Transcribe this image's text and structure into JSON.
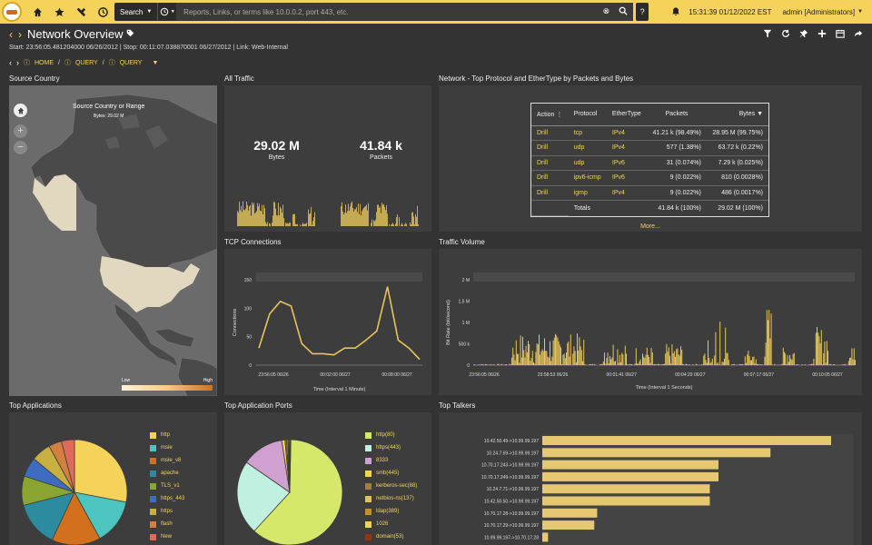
{
  "topbar": {
    "search_label": "Search",
    "search_placeholder": "Reports, Links, or terms like 10.0.0.2, port 443, etc.",
    "help": "?",
    "clock": "15:31:39 01/12/2022 EST",
    "user": "admin [Administrators]"
  },
  "page": {
    "title": "Network Overview",
    "subline": "Start: 23:56:05.481204000 06/26/2012 | Stop: 00:11:07.038870001 06/27/2012 | Link: Web-Internal",
    "crumbs": [
      "HOME",
      "QUERY",
      "QUERY"
    ]
  },
  "source_country": {
    "title": "Source Country",
    "tooltip_title": "Source Country or Range",
    "tooltip_value": "Bytes: 29.02 M",
    "legend_low": "Low",
    "legend_high": "High"
  },
  "all_traffic": {
    "title": "All Traffic",
    "bytes_value": "29.02 M",
    "bytes_label": "Bytes",
    "packets_value": "41.84 k",
    "packets_label": "Packets"
  },
  "protocol": {
    "title": "Network - Top Protocol and EtherType by Packets and Bytes",
    "headers": [
      "Action",
      "Protocol",
      "EtherType",
      "Packets",
      "Bytes"
    ],
    "rows": [
      [
        "Drill",
        "tcp",
        "IPv4",
        "41.21 k (98.49%)",
        "28.95 M (99.75%)"
      ],
      [
        "Drill",
        "udp",
        "IPv4",
        "577 (1.38%)",
        "63.72 k (0.22%)"
      ],
      [
        "Drill",
        "udp",
        "IPv6",
        "31 (0.074%)",
        "7.29 k (0.025%)"
      ],
      [
        "Drill",
        "ipv6-icmp",
        "IPv6",
        "9 (0.022%)",
        "810 (0.0028%)"
      ],
      [
        "Drill",
        "igmp",
        "IPv4",
        "9 (0.022%)",
        "486 (0.0017%)"
      ]
    ],
    "totals_label": "Totals",
    "total_packets": "41.84 k (100%)",
    "total_bytes": "29.02 M (100%)",
    "more": "More..."
  },
  "tcp": {
    "title": "TCP Connections",
    "ylabel": "Connections",
    "xlabel": "Time (Interval 1 Minute)",
    "yticks": [
      "150",
      "100",
      "50",
      "0"
    ],
    "xticks": [
      "23:56:05 06/26",
      "00:02:00 06/27",
      "00:08:00 06/27"
    ]
  },
  "traffic": {
    "title": "Traffic Volume",
    "ylabel": "Bit Rate (bit/second)",
    "xlabel": "Time (Interval 1 Seconds)",
    "yticks": [
      "2 M",
      "1.5 M",
      "1 M",
      "500 k",
      "0"
    ],
    "xticks": [
      "23:56:05 06/26",
      "23:58:53 06/26",
      "00:01:41 06/27",
      "00:04:29 06/27",
      "00:07:17 06/27",
      "00:10:05 06/27"
    ]
  },
  "apps": {
    "title": "Top Applications",
    "items": [
      {
        "label": "http",
        "color": "#f5d35a",
        "v": 28
      },
      {
        "label": "msie",
        "color": "#4cc5c0",
        "v": 14
      },
      {
        "label": "msie_v8",
        "color": "#d2701e",
        "v": 15
      },
      {
        "label": "apache",
        "color": "#2d8ba0",
        "v": 14
      },
      {
        "label": "TLS_v1",
        "color": "#8aa630",
        "v": 9
      },
      {
        "label": "https_443",
        "color": "#3d6cc0",
        "v": 6
      },
      {
        "label": "https",
        "color": "#c8b040",
        "v": 6
      },
      {
        "label": "flash",
        "color": "#d28040",
        "v": 4
      },
      {
        "label": "New",
        "color": "#e06a5a",
        "v": 4
      }
    ]
  },
  "ports": {
    "title": "Top Application Ports",
    "items": [
      {
        "label": "http(80)",
        "color": "#d6e86a",
        "v": 62
      },
      {
        "label": "https(443)",
        "color": "#c0f0e0",
        "v": 23
      },
      {
        "label": "8333",
        "color": "#d0a0d0",
        "v": 13
      },
      {
        "label": "smb(445)",
        "color": "#f5d35a",
        "v": 1
      },
      {
        "label": "kerberos-sec(88)",
        "color": "#a08040",
        "v": 0.5
      },
      {
        "label": "netbios-ns(137)",
        "color": "#e0c060",
        "v": 0.4
      },
      {
        "label": "ldap(389)",
        "color": "#c09030",
        "v": 0.3
      },
      {
        "label": "1026",
        "color": "#f0d060",
        "v": 0.3
      },
      {
        "label": "domain(53)",
        "color": "#8a3a10",
        "v": 0.3
      }
    ]
  },
  "talkers": {
    "title": "Top Talkers",
    "items": [
      {
        "label": "10.42.50.49->10.99.99.197",
        "v": 100
      },
      {
        "label": "10.24.7.69->10.99.99.197",
        "v": 79
      },
      {
        "label": "10.70.17.243->10.99.99.197",
        "v": 61
      },
      {
        "label": "10.70.17.249->10.99.99.197",
        "v": 61
      },
      {
        "label": "10.24.7.71->10.99.99.197",
        "v": 58
      },
      {
        "label": "10.42.50.50->10.99.99.197",
        "v": 58
      },
      {
        "label": "10.70.17.28->10.99.99.197",
        "v": 19
      },
      {
        "label": "10.70.17.29->10.99.99.197",
        "v": 18
      },
      {
        "label": "10.99.99.197->10.70.17.28",
        "v": 2
      }
    ]
  }
}
